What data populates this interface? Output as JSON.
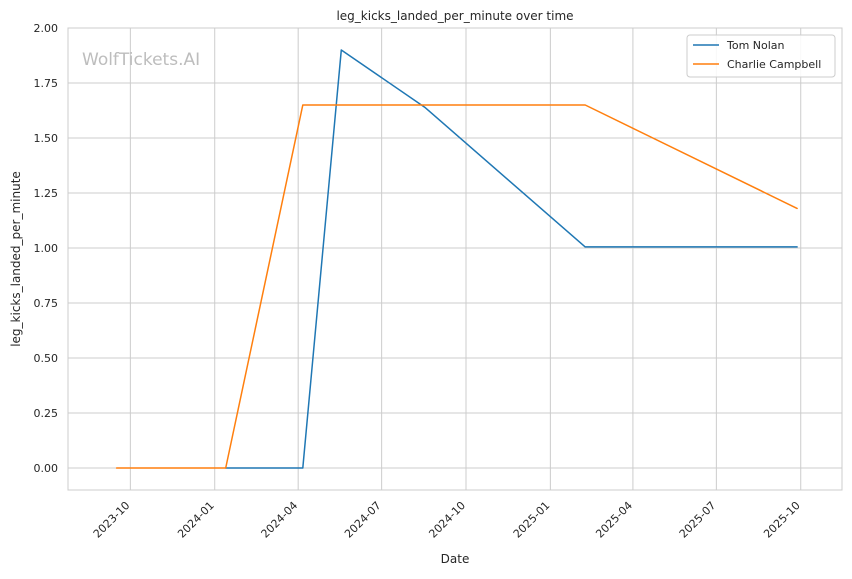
{
  "chart_data": {
    "type": "line",
    "title": "leg_kicks_landed_per_minute over time",
    "xlabel": "Date",
    "ylabel": "leg_kicks_landed_per_minute",
    "watermark": "WolfTickets.AI",
    "xlim": [
      "2023-07-25",
      "2025-11-15"
    ],
    "ylim": [
      -0.1,
      2.0
    ],
    "y_ticks": [
      "0.00",
      "0.25",
      "0.50",
      "0.75",
      "1.00",
      "1.25",
      "1.50",
      "1.75",
      "2.00"
    ],
    "x_ticks": [
      "2023-10",
      "2024-01",
      "2024-04",
      "2024-07",
      "2024-10",
      "2025-01",
      "2025-04",
      "2025-07",
      "2025-10"
    ],
    "grid": true,
    "legend_position": "top-right",
    "series": [
      {
        "name": "Tom Nolan",
        "color": "#1f77b4",
        "x": [
          "2024-01-13",
          "2024-04-06",
          "2024-05-18",
          "2024-08-17",
          "2025-02-08",
          "2025-09-27"
        ],
        "y": [
          0.0,
          0.0,
          1.9,
          1.64,
          1.005,
          1.005
        ]
      },
      {
        "name": "Charlie Campbell",
        "color": "#ff7f0e",
        "x": [
          "2023-09-16",
          "2024-01-13",
          "2024-04-06",
          "2024-08-17",
          "2025-02-08",
          "2025-09-27"
        ],
        "y": [
          0.0,
          0.0,
          1.65,
          1.65,
          1.65,
          1.18
        ]
      }
    ]
  }
}
